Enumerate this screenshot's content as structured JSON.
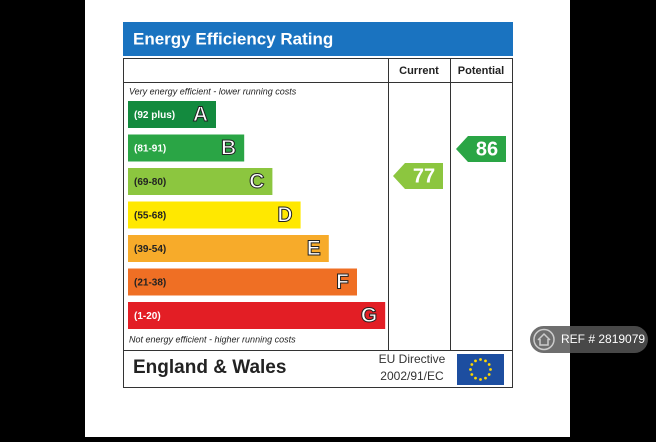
{
  "title": "Energy Efficiency Rating",
  "headers": [
    "Current",
    "Potential"
  ],
  "top_note": "Very energy efficient - lower running costs",
  "bottom_note": "Not energy efficient - higher running costs",
  "bands": [
    {
      "range": "(92 plus)",
      "letter": "A",
      "color": "#138a3e"
    },
    {
      "range": "(81-91)",
      "letter": "B",
      "color": "#2aa545"
    },
    {
      "range": "(69-80)",
      "letter": "C",
      "color": "#8cc63f"
    },
    {
      "range": "(55-68)",
      "letter": "D",
      "color": "#ffe800"
    },
    {
      "range": "(39-54)",
      "letter": "E",
      "color": "#f7ab2a"
    },
    {
      "range": "(21-38)",
      "letter": "F",
      "color": "#ef6f24"
    },
    {
      "range": "(1-20)",
      "letter": "G",
      "color": "#e31e25"
    }
  ],
  "current": {
    "value": 77,
    "color": "#8cc63f"
  },
  "potential": {
    "value": 86,
    "color": "#2aa545"
  },
  "footer": {
    "region": "England & Wales",
    "directive_line1": "EU Directive",
    "directive_line2": "2002/91/EC"
  },
  "ref": "REF # 2819079"
}
